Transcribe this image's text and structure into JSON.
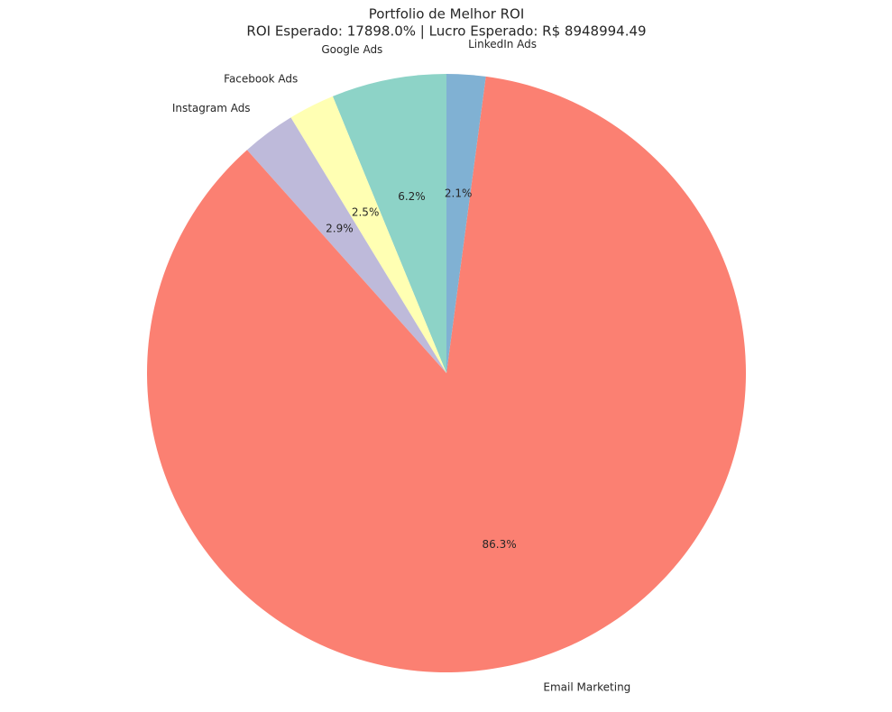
{
  "chart_data": {
    "type": "pie",
    "title": "Portfolio de Melhor ROI",
    "subtitle": "ROI Esperado: 17898.0% | Lucro Esperado: R$ 8948994.49",
    "categories": [
      "Google Ads",
      "Facebook Ads",
      "Instagram Ads",
      "Email Marketing",
      "LinkedIn Ads"
    ],
    "values": [
      6.2,
      2.5,
      2.9,
      86.3,
      2.1
    ],
    "value_labels": [
      "6.2%",
      "2.5%",
      "2.9%",
      "86.3%",
      "2.1%"
    ],
    "colors": [
      "#8dd3c7",
      "#ffffb3",
      "#bebada",
      "#fb8072",
      "#80b1d3"
    ]
  }
}
